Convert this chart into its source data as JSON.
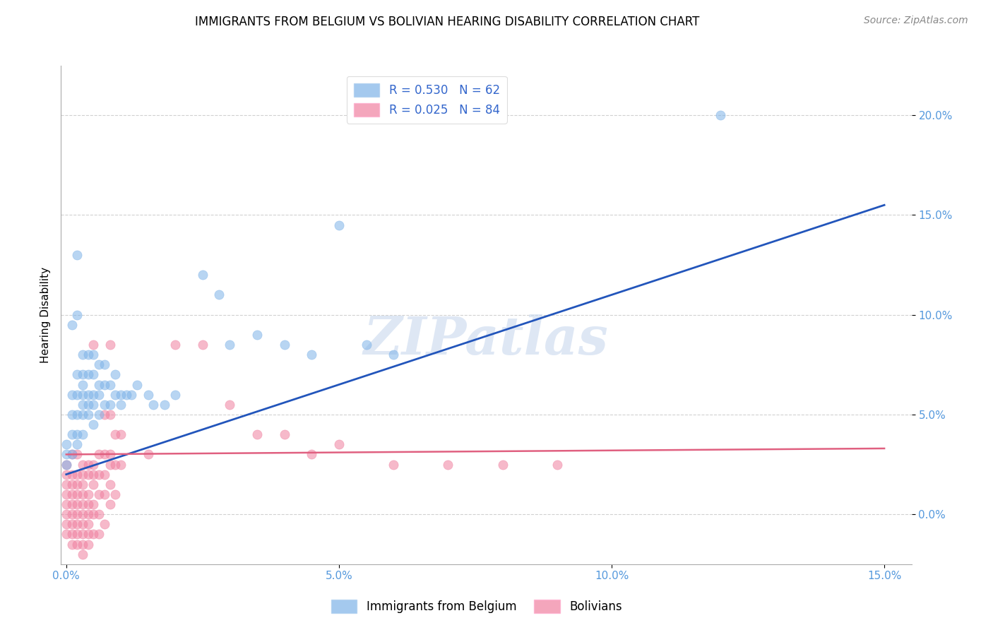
{
  "title": "IMMIGRANTS FROM BELGIUM VS BOLIVIAN HEARING DISABILITY CORRELATION CHART",
  "source": "Source: ZipAtlas.com",
  "ylabel": "Hearing Disability",
  "xlim": [
    -0.001,
    0.155
  ],
  "ylim": [
    -0.025,
    0.225
  ],
  "yticks": [
    0.0,
    0.05,
    0.1,
    0.15,
    0.2
  ],
  "xticks": [
    0.0,
    0.05,
    0.1,
    0.15
  ],
  "blue_color": "#7EB3E8",
  "pink_color": "#F080A0",
  "blue_R": 0.53,
  "blue_N": 62,
  "pink_R": 0.025,
  "pink_N": 84,
  "blue_scatter": [
    [
      0.0,
      0.03
    ],
    [
      0.0,
      0.025
    ],
    [
      0.0,
      0.035
    ],
    [
      0.001,
      0.095
    ],
    [
      0.001,
      0.06
    ],
    [
      0.001,
      0.05
    ],
    [
      0.001,
      0.04
    ],
    [
      0.001,
      0.03
    ],
    [
      0.002,
      0.13
    ],
    [
      0.002,
      0.1
    ],
    [
      0.002,
      0.07
    ],
    [
      0.002,
      0.06
    ],
    [
      0.002,
      0.05
    ],
    [
      0.002,
      0.04
    ],
    [
      0.002,
      0.035
    ],
    [
      0.003,
      0.08
    ],
    [
      0.003,
      0.07
    ],
    [
      0.003,
      0.065
    ],
    [
      0.003,
      0.06
    ],
    [
      0.003,
      0.055
    ],
    [
      0.003,
      0.05
    ],
    [
      0.003,
      0.04
    ],
    [
      0.004,
      0.08
    ],
    [
      0.004,
      0.07
    ],
    [
      0.004,
      0.06
    ],
    [
      0.004,
      0.055
    ],
    [
      0.004,
      0.05
    ],
    [
      0.005,
      0.08
    ],
    [
      0.005,
      0.07
    ],
    [
      0.005,
      0.06
    ],
    [
      0.005,
      0.055
    ],
    [
      0.005,
      0.045
    ],
    [
      0.006,
      0.075
    ],
    [
      0.006,
      0.065
    ],
    [
      0.006,
      0.06
    ],
    [
      0.006,
      0.05
    ],
    [
      0.007,
      0.075
    ],
    [
      0.007,
      0.065
    ],
    [
      0.007,
      0.055
    ],
    [
      0.008,
      0.065
    ],
    [
      0.008,
      0.055
    ],
    [
      0.009,
      0.07
    ],
    [
      0.009,
      0.06
    ],
    [
      0.01,
      0.06
    ],
    [
      0.01,
      0.055
    ],
    [
      0.011,
      0.06
    ],
    [
      0.012,
      0.06
    ],
    [
      0.013,
      0.065
    ],
    [
      0.015,
      0.06
    ],
    [
      0.016,
      0.055
    ],
    [
      0.018,
      0.055
    ],
    [
      0.02,
      0.06
    ],
    [
      0.025,
      0.12
    ],
    [
      0.028,
      0.11
    ],
    [
      0.03,
      0.085
    ],
    [
      0.035,
      0.09
    ],
    [
      0.04,
      0.085
    ],
    [
      0.045,
      0.08
    ],
    [
      0.05,
      0.145
    ],
    [
      0.055,
      0.085
    ],
    [
      0.06,
      0.08
    ],
    [
      0.12,
      0.2
    ]
  ],
  "pink_scatter": [
    [
      0.0,
      0.025
    ],
    [
      0.0,
      0.02
    ],
    [
      0.0,
      0.015
    ],
    [
      0.0,
      0.01
    ],
    [
      0.0,
      0.005
    ],
    [
      0.0,
      0.0
    ],
    [
      0.0,
      -0.005
    ],
    [
      0.0,
      -0.01
    ],
    [
      0.001,
      0.03
    ],
    [
      0.001,
      0.02
    ],
    [
      0.001,
      0.015
    ],
    [
      0.001,
      0.01
    ],
    [
      0.001,
      0.005
    ],
    [
      0.001,
      0.0
    ],
    [
      0.001,
      -0.005
    ],
    [
      0.001,
      -0.01
    ],
    [
      0.001,
      -0.015
    ],
    [
      0.002,
      0.03
    ],
    [
      0.002,
      0.02
    ],
    [
      0.002,
      0.015
    ],
    [
      0.002,
      0.01
    ],
    [
      0.002,
      0.005
    ],
    [
      0.002,
      0.0
    ],
    [
      0.002,
      -0.005
    ],
    [
      0.002,
      -0.01
    ],
    [
      0.002,
      -0.015
    ],
    [
      0.003,
      0.025
    ],
    [
      0.003,
      0.02
    ],
    [
      0.003,
      0.015
    ],
    [
      0.003,
      0.01
    ],
    [
      0.003,
      0.005
    ],
    [
      0.003,
      0.0
    ],
    [
      0.003,
      -0.005
    ],
    [
      0.003,
      -0.01
    ],
    [
      0.003,
      -0.015
    ],
    [
      0.003,
      -0.02
    ],
    [
      0.004,
      0.025
    ],
    [
      0.004,
      0.02
    ],
    [
      0.004,
      0.01
    ],
    [
      0.004,
      0.005
    ],
    [
      0.004,
      0.0
    ],
    [
      0.004,
      -0.005
    ],
    [
      0.004,
      -0.01
    ],
    [
      0.004,
      -0.015
    ],
    [
      0.005,
      0.085
    ],
    [
      0.005,
      0.025
    ],
    [
      0.005,
      0.02
    ],
    [
      0.005,
      0.015
    ],
    [
      0.005,
      0.005
    ],
    [
      0.005,
      0.0
    ],
    [
      0.005,
      -0.01
    ],
    [
      0.006,
      0.03
    ],
    [
      0.006,
      0.02
    ],
    [
      0.006,
      0.01
    ],
    [
      0.006,
      0.0
    ],
    [
      0.006,
      -0.01
    ],
    [
      0.007,
      0.05
    ],
    [
      0.007,
      0.03
    ],
    [
      0.007,
      0.02
    ],
    [
      0.007,
      0.01
    ],
    [
      0.007,
      -0.005
    ],
    [
      0.008,
      0.085
    ],
    [
      0.008,
      0.05
    ],
    [
      0.008,
      0.03
    ],
    [
      0.008,
      0.025
    ],
    [
      0.008,
      0.015
    ],
    [
      0.008,
      0.005
    ],
    [
      0.009,
      0.04
    ],
    [
      0.009,
      0.025
    ],
    [
      0.009,
      0.01
    ],
    [
      0.01,
      0.04
    ],
    [
      0.01,
      0.025
    ],
    [
      0.015,
      0.03
    ],
    [
      0.02,
      0.085
    ],
    [
      0.025,
      0.085
    ],
    [
      0.03,
      0.055
    ],
    [
      0.035,
      0.04
    ],
    [
      0.04,
      0.04
    ],
    [
      0.045,
      0.03
    ],
    [
      0.05,
      0.035
    ],
    [
      0.06,
      0.025
    ],
    [
      0.07,
      0.025
    ],
    [
      0.08,
      0.025
    ],
    [
      0.09,
      0.025
    ]
  ],
  "blue_line_x": [
    0.0,
    0.15
  ],
  "blue_line_y": [
    0.02,
    0.155
  ],
  "pink_line_x": [
    0.0,
    0.15
  ],
  "pink_line_y": [
    0.03,
    0.033
  ],
  "watermark": "ZIPatlas",
  "legend_labels": [
    "Immigrants from Belgium",
    "Bolivians"
  ],
  "title_fontsize": 12,
  "axis_label_fontsize": 11,
  "tick_fontsize": 11,
  "legend_fontsize": 12,
  "source_fontsize": 10
}
